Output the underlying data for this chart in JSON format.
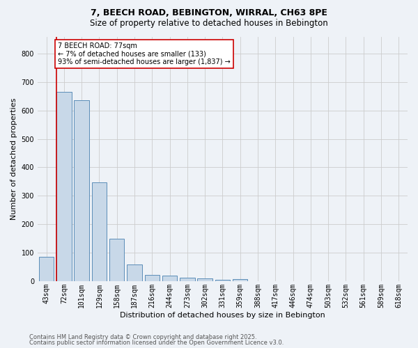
{
  "title1": "7, BEECH ROAD, BEBINGTON, WIRRAL, CH63 8PE",
  "title2": "Size of property relative to detached houses in Bebington",
  "xlabel": "Distribution of detached houses by size in Bebington",
  "ylabel": "Number of detached properties",
  "categories": [
    "43sqm",
    "72sqm",
    "101sqm",
    "129sqm",
    "158sqm",
    "187sqm",
    "216sqm",
    "244sqm",
    "273sqm",
    "302sqm",
    "331sqm",
    "359sqm",
    "388sqm",
    "417sqm",
    "446sqm",
    "474sqm",
    "503sqm",
    "532sqm",
    "561sqm",
    "589sqm",
    "618sqm"
  ],
  "values": [
    85,
    665,
    635,
    348,
    148,
    58,
    23,
    20,
    13,
    10,
    5,
    6,
    0,
    0,
    0,
    0,
    0,
    0,
    0,
    0,
    0
  ],
  "bar_color": "#c8d8e8",
  "bar_edge_color": "#5b8db8",
  "vline_color": "#cc0000",
  "grid_color": "#cccccc",
  "background_color": "#eef2f7",
  "ylim": [
    0,
    860
  ],
  "yticks": [
    0,
    100,
    200,
    300,
    400,
    500,
    600,
    700,
    800
  ],
  "annotation_title": "7 BEECH ROAD: 77sqm",
  "annotation_line1": "← 7% of detached houses are smaller (133)",
  "annotation_line2": "93% of semi-detached houses are larger (1,837) →",
  "annotation_box_edge_color": "#cc0000",
  "footer1": "Contains HM Land Registry data © Crown copyright and database right 2025.",
  "footer2": "Contains public sector information licensed under the Open Government Licence v3.0.",
  "title1_fontsize": 9,
  "title2_fontsize": 8.5,
  "ylabel_fontsize": 8,
  "xlabel_fontsize": 8,
  "tick_fontsize": 7,
  "footer_fontsize": 6
}
